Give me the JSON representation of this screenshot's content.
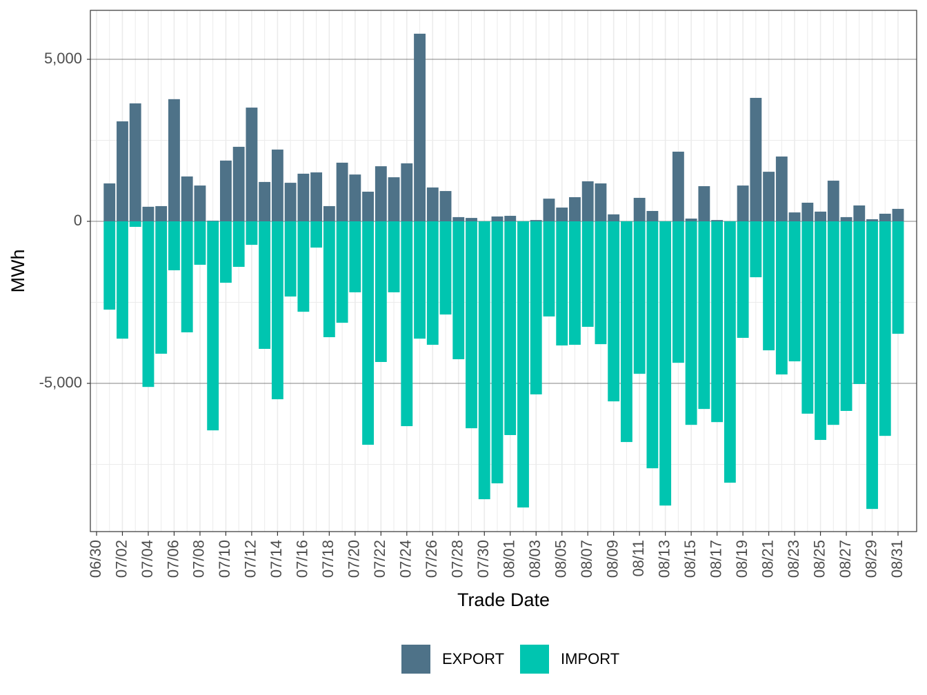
{
  "chart_data": {
    "type": "bar",
    "stacked": "diverging",
    "x_label": "Trade Date",
    "y_label": "MWh",
    "categories": [
      "06/30",
      null,
      "07/02",
      null,
      "07/04",
      null,
      "07/06",
      null,
      "07/08",
      null,
      "07/10",
      null,
      "07/12",
      null,
      "07/14",
      null,
      "07/16",
      null,
      "07/18",
      null,
      "07/20",
      null,
      "07/22",
      null,
      "07/24",
      null,
      "07/26",
      null,
      "07/28",
      null,
      "07/30",
      null,
      "08/01",
      null,
      "08/03",
      null,
      "08/05",
      null,
      "08/07",
      null,
      "08/09",
      null,
      "08/11",
      null,
      "08/13",
      null,
      "08/15",
      null,
      "08/17",
      null,
      "08/19",
      null,
      "08/21",
      null,
      "08/23",
      null,
      "08/25",
      null,
      "08/27",
      null,
      "08/29",
      null,
      "08/31"
    ],
    "series": [
      {
        "name": "EXPORT",
        "color": "#4e7288",
        "values": [
          null,
          1170,
          3085,
          3640,
          450,
          470,
          3770,
          1385,
          1105,
          20,
          1875,
          2300,
          3510,
          1215,
          2215,
          1190,
          1470,
          1510,
          470,
          1810,
          1445,
          915,
          1700,
          1360,
          1790,
          5790,
          1045,
          935,
          130,
          105,
          0,
          150,
          170,
          0,
          40,
          700,
          425,
          745,
          1235,
          1170,
          215,
          0,
          725,
          320,
          0,
          2150,
          85,
          1085,
          40,
          0,
          1105,
          3810,
          1530,
          2000,
          275,
          575,
          300,
          1255,
          130,
          490,
          65,
          235,
          385
        ]
      },
      {
        "name": "IMPORT",
        "color": "#00c5b0",
        "values": [
          null,
          -2725,
          -3620,
          -170,
          -5110,
          -4085,
          -1510,
          -3425,
          -1340,
          -6450,
          -1895,
          -1405,
          -725,
          -3935,
          -5490,
          -2320,
          -2790,
          -810,
          -3575,
          -3130,
          -2190,
          -6895,
          -4340,
          -2190,
          -6320,
          -3620,
          -3810,
          -2875,
          -4255,
          -6385,
          -8575,
          -8085,
          -6595,
          -8830,
          -5340,
          -2935,
          -3830,
          -3810,
          -3255,
          -3790,
          -5555,
          -6810,
          -4705,
          -7620,
          -8770,
          -4365,
          -6280,
          -5790,
          -6195,
          -8065,
          -3595,
          -1725,
          -3980,
          -4725,
          -4320,
          -5935,
          -6745,
          -6280,
          -5850,
          -5020,
          -8875,
          -6620,
          -3470
        ]
      }
    ],
    "ylim": [
      -9574,
      6511
    ],
    "yticks": [
      {
        "value": -5000,
        "label": "-5,000"
      },
      0,
      {
        "value": 5000,
        "label": "5,000"
      }
    ],
    "yminor": [
      -7500,
      -2500,
      2500
    ],
    "grid": true,
    "legend": "bottom"
  }
}
